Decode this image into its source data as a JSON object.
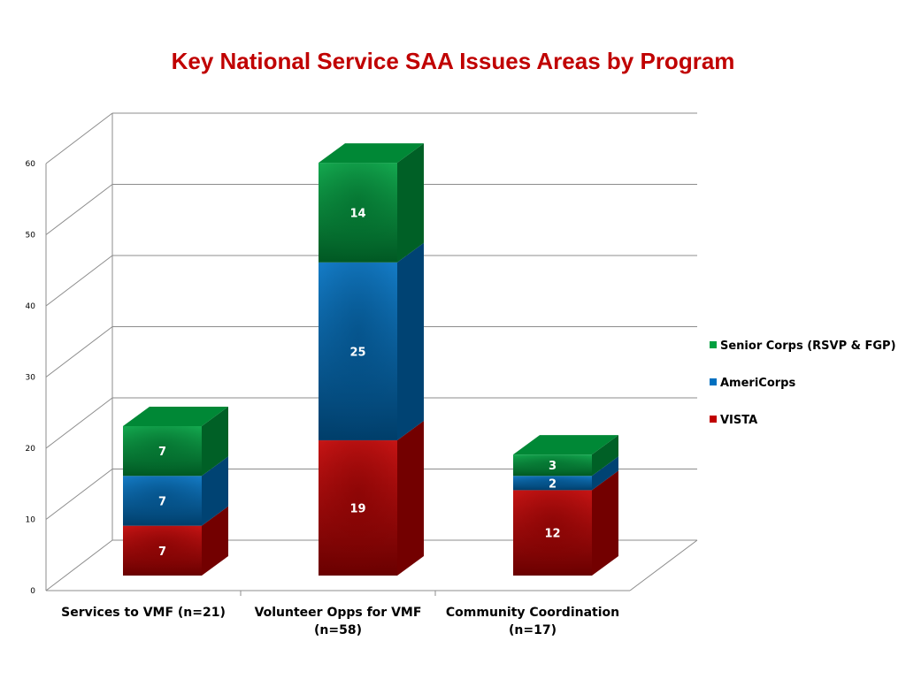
{
  "chart_data": {
    "type": "bar",
    "stacked": true,
    "three_d": true,
    "title": "Key National Service SAA Issues Areas by Program",
    "xlabel": "",
    "ylabel": "",
    "ylim": [
      0,
      60
    ],
    "yticks": [
      0,
      10,
      20,
      30,
      40,
      50,
      60
    ],
    "grid": true,
    "legend_position": "right",
    "categories": [
      [
        "Services to VMF (n=21)"
      ],
      [
        "Volunteer Opps for VMF",
        "(n=58)"
      ],
      [
        "Community Coordination",
        "(n=17)"
      ]
    ],
    "series": [
      {
        "name": "VISTA",
        "values": [
          7,
          19,
          12
        ],
        "color": "#c00000"
      },
      {
        "name": "AmeriCorps",
        "values": [
          7,
          25,
          2
        ],
        "color": "#0070c0"
      },
      {
        "name": "Senior Corps (RSVP & FGP)",
        "values": [
          7,
          14,
          3
        ],
        "color": "#00a040"
      }
    ],
    "legend_order": [
      "Senior Corps (RSVP & FGP)",
      "AmeriCorps",
      "VISTA"
    ]
  }
}
